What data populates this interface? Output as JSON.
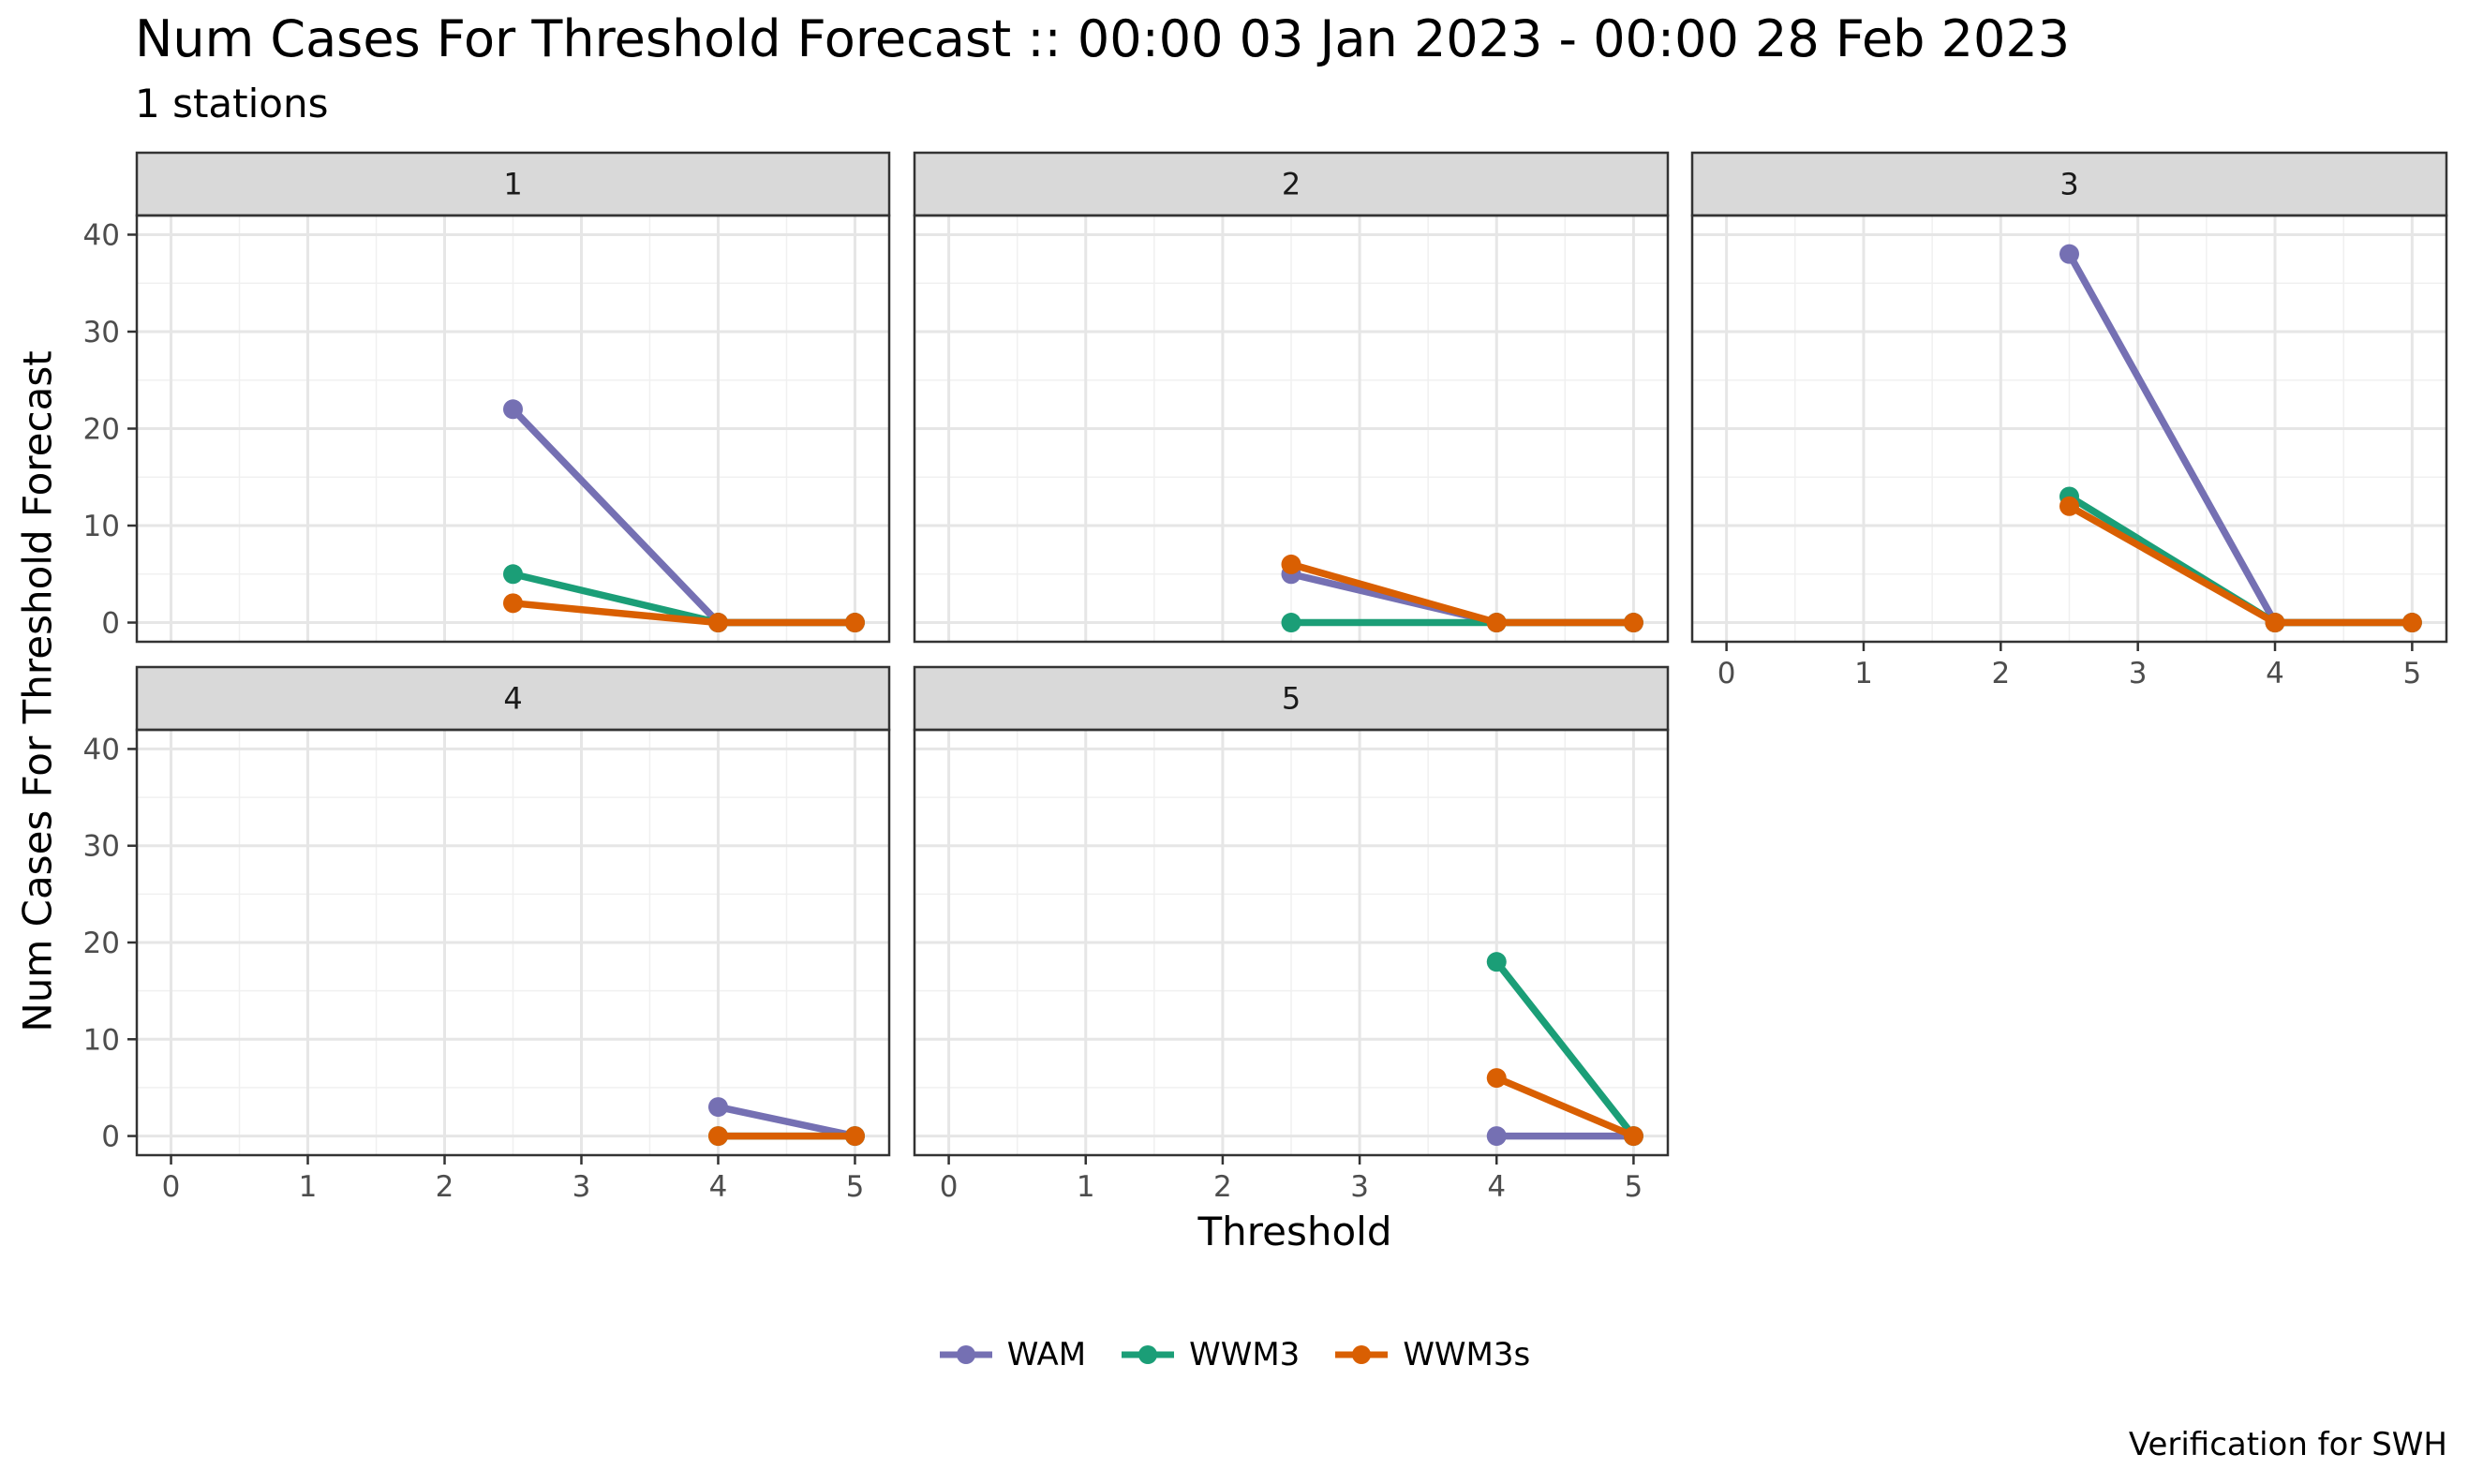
{
  "title": "Num Cases For Threshold Forecast :: 00:00 03 Jan 2023 - 00:00 28 Feb 2023",
  "subtitle": "1 stations",
  "caption": "Verification for SWH",
  "colors": {
    "WAM": "#7570B3",
    "WWM3": "#1B9E77",
    "WWM3s": "#D95F02"
  },
  "chart_data": {
    "type": "line",
    "facet_by": "panel",
    "xlabel": "Threshold",
    "ylabel": "Num Cases For Threshold Forecast",
    "xlim": [
      0,
      5
    ],
    "ylim": [
      0,
      40
    ],
    "x_ticks": [
      "0",
      "1",
      "2",
      "3",
      "4",
      "5"
    ],
    "y_ticks": [
      "0",
      "10",
      "20",
      "30",
      "40"
    ],
    "grid": true,
    "legend_position": "bottom",
    "legend": [
      "WAM",
      "WWM3",
      "WWM3s"
    ],
    "panels": [
      {
        "label": "1",
        "series": [
          {
            "name": "WAM",
            "x": [
              2.5,
              4,
              5
            ],
            "y": [
              22,
              0,
              0
            ]
          },
          {
            "name": "WWM3",
            "x": [
              2.5,
              4,
              5
            ],
            "y": [
              5,
              0,
              0
            ]
          },
          {
            "name": "WWM3s",
            "x": [
              2.5,
              4,
              5
            ],
            "y": [
              2,
              0,
              0
            ]
          }
        ]
      },
      {
        "label": "2",
        "series": [
          {
            "name": "WAM",
            "x": [
              2.5,
              4,
              5
            ],
            "y": [
              5,
              0,
              0
            ]
          },
          {
            "name": "WWM3",
            "x": [
              2.5,
              4,
              5
            ],
            "y": [
              0,
              0,
              0
            ]
          },
          {
            "name": "WWM3s",
            "x": [
              2.5,
              4,
              5
            ],
            "y": [
              6,
              0,
              0
            ]
          }
        ]
      },
      {
        "label": "3",
        "series": [
          {
            "name": "WAM",
            "x": [
              2.5,
              4,
              5
            ],
            "y": [
              38,
              0,
              0
            ]
          },
          {
            "name": "WWM3",
            "x": [
              2.5,
              4,
              5
            ],
            "y": [
              13,
              0,
              0
            ]
          },
          {
            "name": "WWM3s",
            "x": [
              2.5,
              4,
              5
            ],
            "y": [
              12,
              0,
              0
            ]
          }
        ]
      },
      {
        "label": "4",
        "series": [
          {
            "name": "WAM",
            "x": [
              4,
              5
            ],
            "y": [
              3,
              0
            ]
          },
          {
            "name": "WWM3",
            "x": [
              4,
              5
            ],
            "y": [
              0,
              0
            ]
          },
          {
            "name": "WWM3s",
            "x": [
              4,
              5
            ],
            "y": [
              0,
              0
            ]
          }
        ]
      },
      {
        "label": "5",
        "series": [
          {
            "name": "WAM",
            "x": [
              4,
              5
            ],
            "y": [
              0,
              0
            ]
          },
          {
            "name": "WWM3",
            "x": [
              4,
              5
            ],
            "y": [
              18,
              0
            ]
          },
          {
            "name": "WWM3s",
            "x": [
              4,
              5
            ],
            "y": [
              6,
              0
            ]
          }
        ]
      }
    ]
  }
}
